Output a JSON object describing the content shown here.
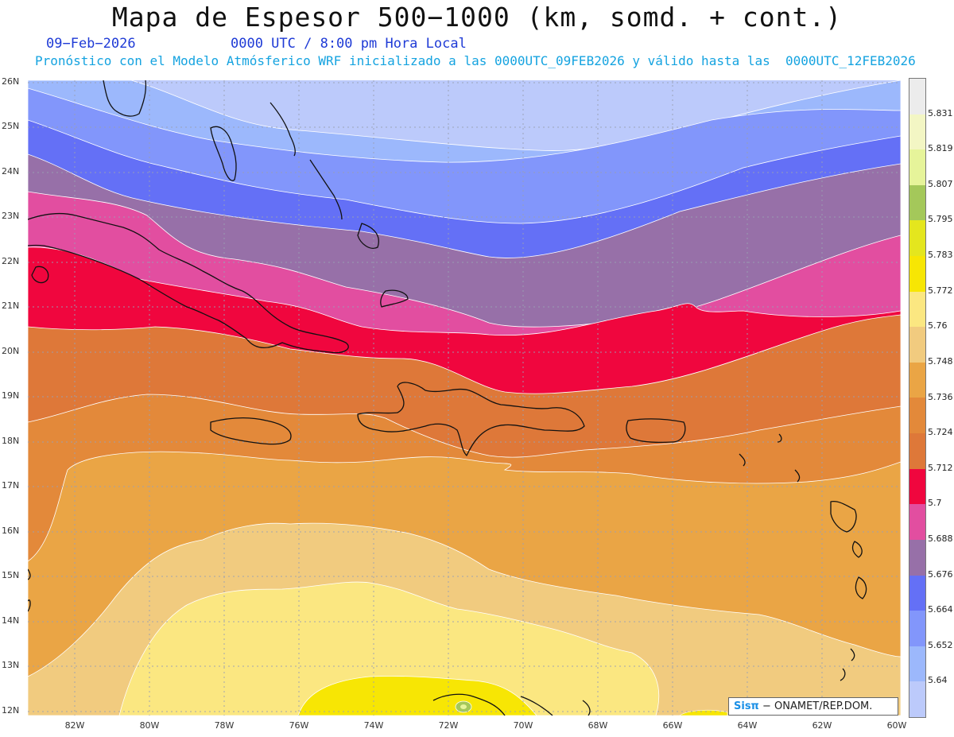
{
  "title": "Mapa de Espesor 500−1000 (km, somd. + cont.)",
  "date": "09−Feb−2026",
  "time": "0000 UTC / 8:00 pm Hora Local",
  "forecast": "Pronóstico con el Modelo Atmósferico WRF inicializado a las 0000UTC_09FEB2026 y válido hasta las  0000UTC_12FEB2026",
  "lat_labels": [
    "26N",
    "25N",
    "24N",
    "23N",
    "22N",
    "21N",
    "20N",
    "19N",
    "18N",
    "17N",
    "16N",
    "15N",
    "14N",
    "13N",
    "12N"
  ],
  "lon_labels": [
    "82W",
    "80W",
    "78W",
    "76W",
    "74W",
    "72W",
    "70W",
    "68W",
    "66W",
    "64W",
    "62W",
    "60W"
  ],
  "colorbar": {
    "levels": [
      "5.831",
      "5.819",
      "5.807",
      "5.795",
      "5.783",
      "5.772",
      "5.76",
      "5.748",
      "5.736",
      "5.724",
      "5.712",
      "5.7",
      "5.688",
      "5.676",
      "5.664",
      "5.652",
      "5.64"
    ],
    "colors": [
      "#ececec",
      "#f3f6c4",
      "#e6f49a",
      "#a4c85a",
      "#e4e61e",
      "#f7e604",
      "#fbe781",
      "#f1cb7f",
      "#eaa545",
      "#e3893a",
      "#de7839",
      "#f0063e",
      "#e24ea0",
      "#9770a8",
      "#6470f6",
      "#8296fb",
      "#9cb8fc",
      "#bccafb"
    ]
  },
  "credit": {
    "brand": "Sisπ",
    "text": "− ONAMET/REP.DOM."
  }
}
